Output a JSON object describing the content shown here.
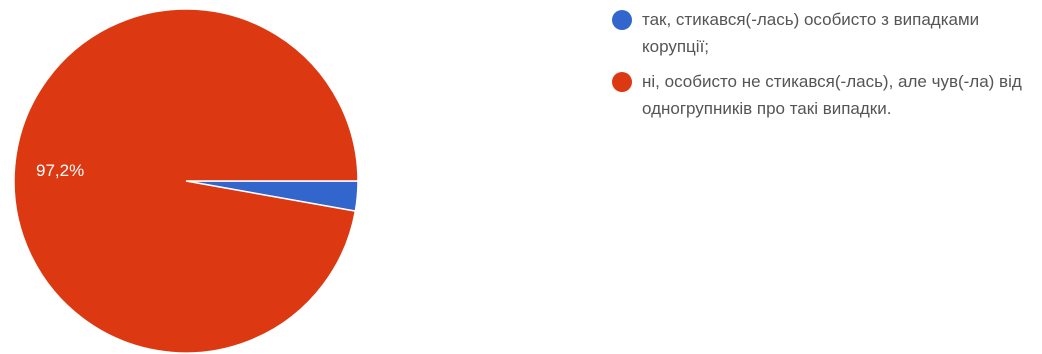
{
  "chart_data": {
    "type": "pie",
    "title": "",
    "series": [
      {
        "label": "так, стикався(-лась) особисто з випадками корупції;",
        "value": 2.8,
        "color": "#3366cc",
        "display": ""
      },
      {
        "label": "ні, особисто не стикався(-лась), але чув(-ла) від одногрупників про такі випадки.",
        "value": 97.2,
        "color": "#dc3912",
        "display": "97,2%"
      }
    ],
    "legend_position": "right"
  }
}
